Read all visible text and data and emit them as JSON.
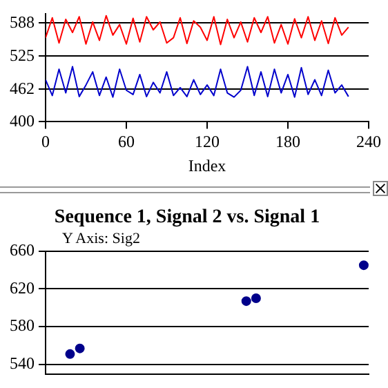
{
  "chart_data": [
    {
      "type": "line",
      "xlabel": "Index",
      "xlim": [
        0,
        240
      ],
      "xticks": [
        0,
        60,
        120,
        180,
        240
      ],
      "ylim": [
        400,
        605
      ],
      "yticks": [
        400,
        462,
        525,
        588
      ],
      "grid": "y",
      "marker": "none",
      "x": [
        0,
        5,
        10,
        15,
        20,
        25,
        30,
        35,
        40,
        45,
        50,
        55,
        60,
        65,
        70,
        75,
        80,
        85,
        90,
        95,
        100,
        105,
        110,
        115,
        120,
        125,
        130,
        135,
        140,
        145,
        150,
        155,
        160,
        165,
        170,
        175,
        180,
        185,
        190,
        195,
        200,
        205,
        210,
        215,
        220,
        225
      ],
      "series": [
        {
          "color": "#ff0000",
          "values": [
            560,
            598,
            550,
            595,
            570,
            600,
            548,
            590,
            555,
            602,
            565,
            585,
            548,
            597,
            552,
            600,
            575,
            590,
            550,
            560,
            598,
            549,
            592,
            580,
            555,
            600,
            547,
            595,
            560,
            590,
            552,
            598,
            570,
            600,
            550,
            585,
            548,
            596,
            560,
            600,
            555,
            592,
            549,
            598,
            565,
            580
          ]
        },
        {
          "color": "#0000cc",
          "values": [
            480,
            450,
            500,
            455,
            505,
            448,
            470,
            495,
            450,
            485,
            447,
            500,
            460,
            452,
            490,
            448,
            475,
            455,
            495,
            450,
            465,
            448,
            480,
            452,
            470,
            450,
            500,
            455,
            447,
            460,
            505,
            450,
            495,
            448,
            500,
            455,
            490,
            447,
            503,
            452,
            480,
            450,
            498,
            455,
            470,
            448
          ]
        }
      ]
    },
    {
      "type": "scatter",
      "title": "Sequence 1, Signal 2 vs. Signal 1",
      "ylabel": "Y Axis: Sig2",
      "categories": [
        null,
        null,
        null,
        null,
        null,
        null,
        null,
        null,
        null,
        null,
        null,
        null,
        null,
        null,
        null,
        null,
        null,
        null,
        null,
        null,
        null,
        null,
        null,
        null,
        null,
        null,
        null,
        null,
        null,
        null,
        null,
        null,
        null
      ],
      "values": [
        null,
        null,
        551,
        557,
        null,
        null,
        null,
        null,
        null,
        null,
        null,
        null,
        null,
        null,
        null,
        null,
        null,
        null,
        null,
        null,
        607,
        610,
        null,
        null,
        null,
        null,
        null,
        null,
        null,
        null,
        null,
        null,
        645
      ],
      "ylim": [
        530,
        660
      ],
      "yticks": [
        540,
        580,
        620,
        660
      ],
      "grid": "y",
      "tick_labels": "y",
      "color": "#00008b",
      "marker": "circle"
    }
  ]
}
